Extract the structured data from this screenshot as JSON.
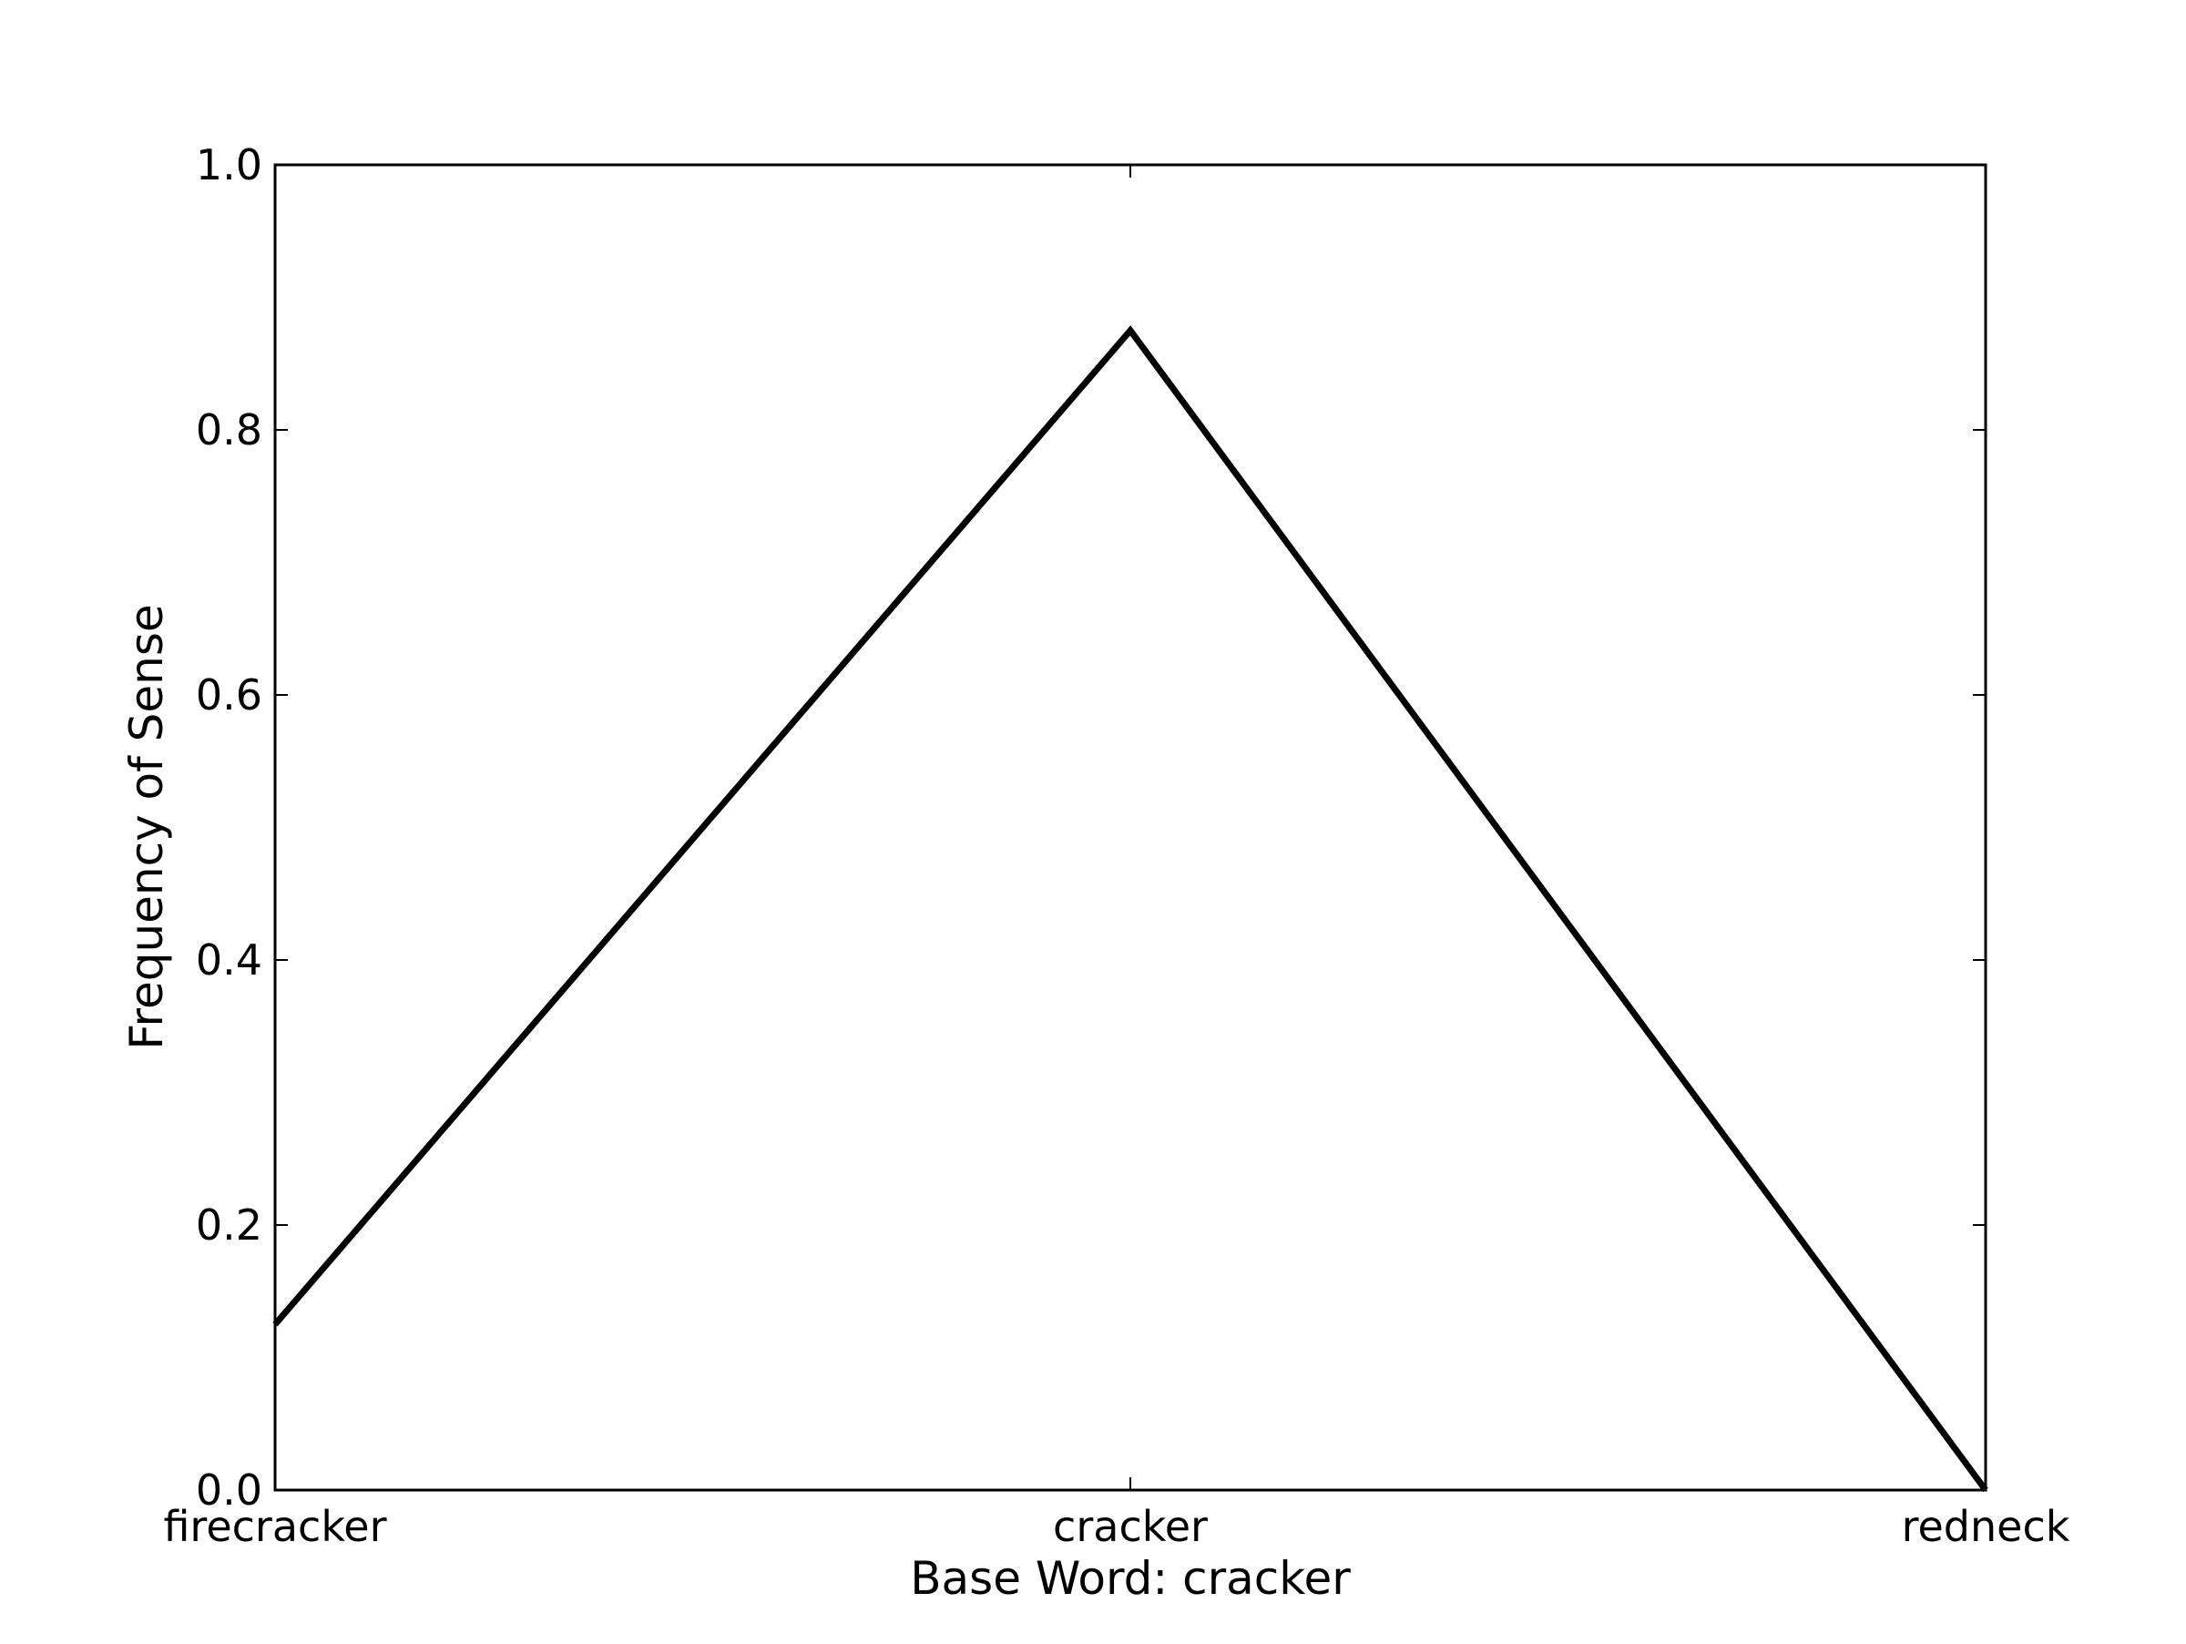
{
  "chart_data": {
    "type": "line",
    "title": "",
    "xlabel": "Base Word: cracker",
    "ylabel": "Frequency of Sense",
    "categories": [
      "firecracker",
      "cracker",
      "redneck"
    ],
    "series": [
      {
        "values": [
          0.125,
          0.875,
          0.0
        ]
      }
    ],
    "ylim": [
      0,
      1.0
    ],
    "yticks": [
      "0.0",
      "0.2",
      "0.4",
      "0.6",
      "0.8",
      "1.0"
    ],
    "grid": false,
    "line_color": "#000000"
  }
}
